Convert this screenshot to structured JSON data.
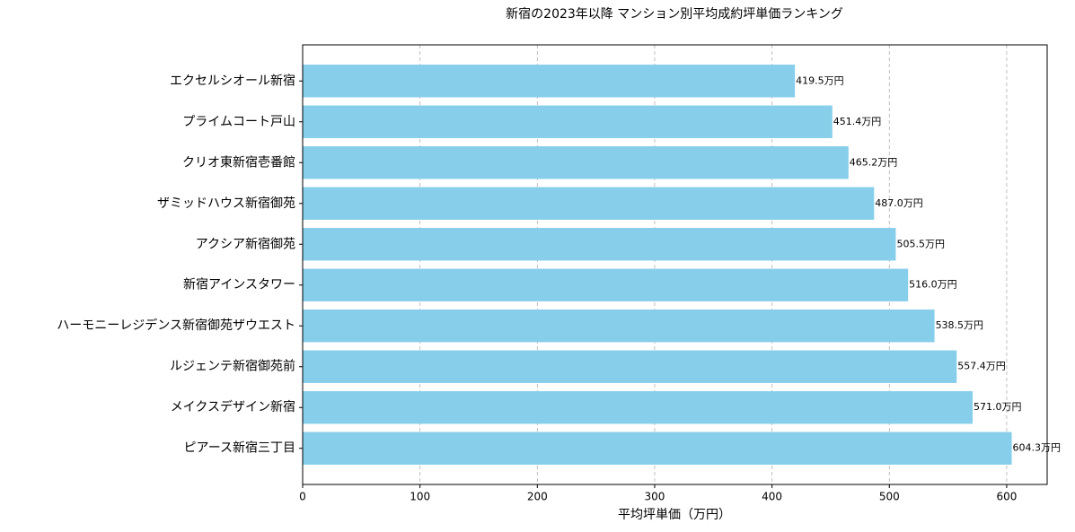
{
  "chart_data": {
    "type": "barh",
    "title": "新宿の2023年以降 マンション別平均成約坪単価ランキング",
    "xlabel": "平均坪単価（万円）",
    "categories": [
      "エクセルシオール新宿",
      "プライムコート戸山",
      "クリオ東新宿壱番館",
      "ザミッドハウス新宿御苑",
      "アクシア新宿御苑",
      "新宿アインスタワー",
      "ハーモニーレジデンス新宿御苑ザウエスト",
      "ルジェンテ新宿御苑前",
      "メイクスデザイン新宿",
      "ピアース新宿三丁目"
    ],
    "values": [
      419.5,
      451.4,
      465.2,
      487.0,
      505.5,
      516.0,
      538.5,
      557.4,
      571.0,
      604.3
    ],
    "value_labels": [
      "419.5万円",
      "451.4万円",
      "465.2万円",
      "487.0万円",
      "505.5万円",
      "516.0万円",
      "538.5万円",
      "557.4万円",
      "571.0万円",
      "604.3万円"
    ],
    "color": "#87ceeb",
    "xlim": [
      0,
      634.5
    ],
    "xticks": [
      0,
      100,
      200,
      300,
      400,
      500,
      600
    ],
    "grid": true
  }
}
